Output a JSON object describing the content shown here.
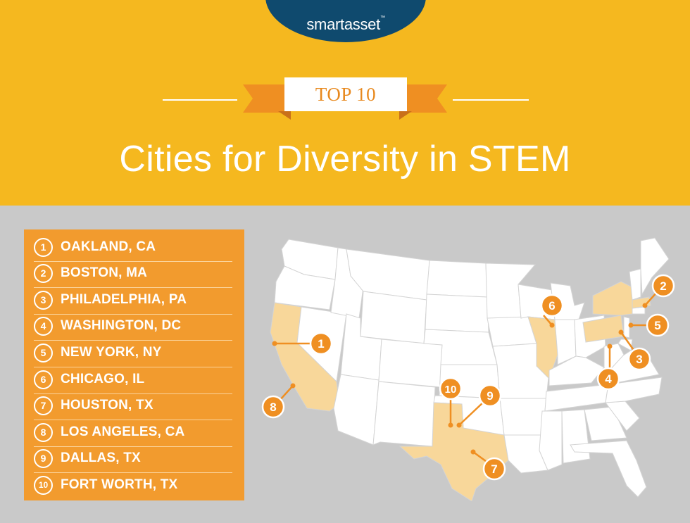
{
  "brand": {
    "logo_text": "smartasset",
    "trademark": "™"
  },
  "header": {
    "badge": "TOP 10",
    "title": "Cities for Diversity in STEM"
  },
  "colors": {
    "header_bg": "#f5b81f",
    "logo_bg": "#0f4a6e",
    "panel_bg": "#f29b2e",
    "accent": "#ef8f22",
    "highlight_state": "#f8d79a",
    "map_bg": "#c9c9c9"
  },
  "rankings": [
    {
      "rank": "1",
      "city": "OAKLAND, CA"
    },
    {
      "rank": "2",
      "city": "BOSTON, MA"
    },
    {
      "rank": "3",
      "city": "PHILADELPHIA, PA"
    },
    {
      "rank": "4",
      "city": "WASHINGTON, DC"
    },
    {
      "rank": "5",
      "city": "NEW YORK, NY"
    },
    {
      "rank": "6",
      "city": "CHICAGO, IL"
    },
    {
      "rank": "7",
      "city": "HOUSTON, TX"
    },
    {
      "rank": "8",
      "city": "LOS ANGELES, CA"
    },
    {
      "rank": "9",
      "city": "DALLAS, TX"
    },
    {
      "rank": "10",
      "city": "FORT WORTH, TX"
    }
  ],
  "map": {
    "highlighted_states": [
      "California",
      "Texas",
      "Illinois",
      "Pennsylvania",
      "New York",
      "Massachusetts"
    ],
    "markers": [
      "1",
      "2",
      "3",
      "4",
      "5",
      "6",
      "7",
      "8",
      "9",
      "10"
    ]
  }
}
